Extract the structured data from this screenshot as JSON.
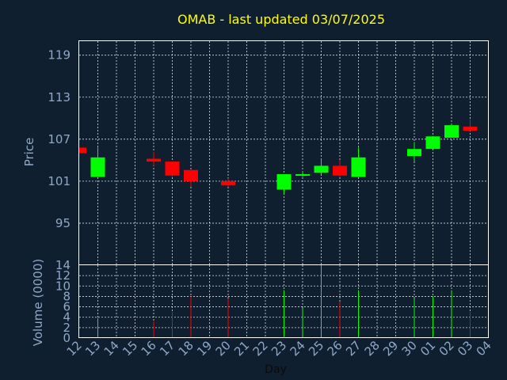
{
  "chart_data": {
    "type": "candlestick",
    "title": "OMAB - last updated 03/07/2025",
    "xlabel": "Day",
    "colors": {
      "background": "#0f1f2f",
      "up": "#00ff00",
      "down": "#ff0000",
      "title": "#ffff00",
      "axis_text": "#8fa8c8",
      "grid": "#ffffff"
    },
    "x_ticks": [
      "12",
      "13",
      "14",
      "15",
      "16",
      "17",
      "18",
      "19",
      "20",
      "21",
      "22",
      "23",
      "24",
      "25",
      "26",
      "27",
      "28",
      "29",
      "30",
      "01",
      "02",
      "03",
      "04"
    ],
    "price_panel": {
      "ylabel": "Price",
      "ylim": [
        89,
        121
      ],
      "y_ticks": [
        95,
        101,
        107,
        113,
        119
      ],
      "grid": true
    },
    "volume_panel": {
      "ylabel": "Volume (0000)",
      "ylim": [
        0,
        14
      ],
      "y_ticks": [
        0,
        2,
        4,
        6,
        8,
        10,
        12,
        14
      ],
      "grid": true
    },
    "candles": [
      {
        "day": "12",
        "open": 105.8,
        "high": 105.8,
        "low": 105.0,
        "close": 105.0,
        "volume": 0.0
      },
      {
        "day": "13",
        "open": 101.6,
        "high": 105.8,
        "low": 101.6,
        "close": 104.4,
        "volume": 3.8
      },
      {
        "day": "16",
        "open": 104.2,
        "high": 105.2,
        "low": 103.2,
        "close": 103.8,
        "volume": 3.2
      },
      {
        "day": "17",
        "open": 103.8,
        "high": 103.8,
        "low": 101.6,
        "close": 101.8,
        "volume": 5.0
      },
      {
        "day": "18",
        "open": 102.6,
        "high": 102.6,
        "low": 100.2,
        "close": 101.0,
        "volume": 8.0
      },
      {
        "day": "20",
        "open": 101.0,
        "high": 101.4,
        "low": 100.2,
        "close": 100.4,
        "volume": 7.6
      },
      {
        "day": "23",
        "open": 99.8,
        "high": 102.0,
        "low": 99.2,
        "close": 102.0,
        "volume": 9.2
      },
      {
        "day": "24",
        "open": 101.8,
        "high": 102.4,
        "low": 101.6,
        "close": 102.0,
        "volume": 5.8
      },
      {
        "day": "25",
        "open": 102.2,
        "high": 104.2,
        "low": 102.0,
        "close": 103.2,
        "volume": 14.0
      },
      {
        "day": "26",
        "open": 103.2,
        "high": 104.0,
        "low": 101.6,
        "close": 101.8,
        "volume": 7.0
      },
      {
        "day": "27",
        "open": 101.6,
        "high": 105.8,
        "low": 101.6,
        "close": 104.4,
        "volume": 9.2
      },
      {
        "day": "30",
        "open": 104.6,
        "high": 106.6,
        "low": 103.8,
        "close": 105.6,
        "volume": 7.6
      },
      {
        "day": "01",
        "open": 105.6,
        "high": 107.4,
        "low": 105.6,
        "close": 107.4,
        "volume": 8.0
      },
      {
        "day": "02",
        "open": 107.2,
        "high": 109.2,
        "low": 107.2,
        "close": 109.0,
        "volume": 9.2
      },
      {
        "day": "03",
        "open": 108.8,
        "high": 109.8,
        "low": 108.2,
        "close": 108.2,
        "volume": 5.0
      }
    ]
  }
}
